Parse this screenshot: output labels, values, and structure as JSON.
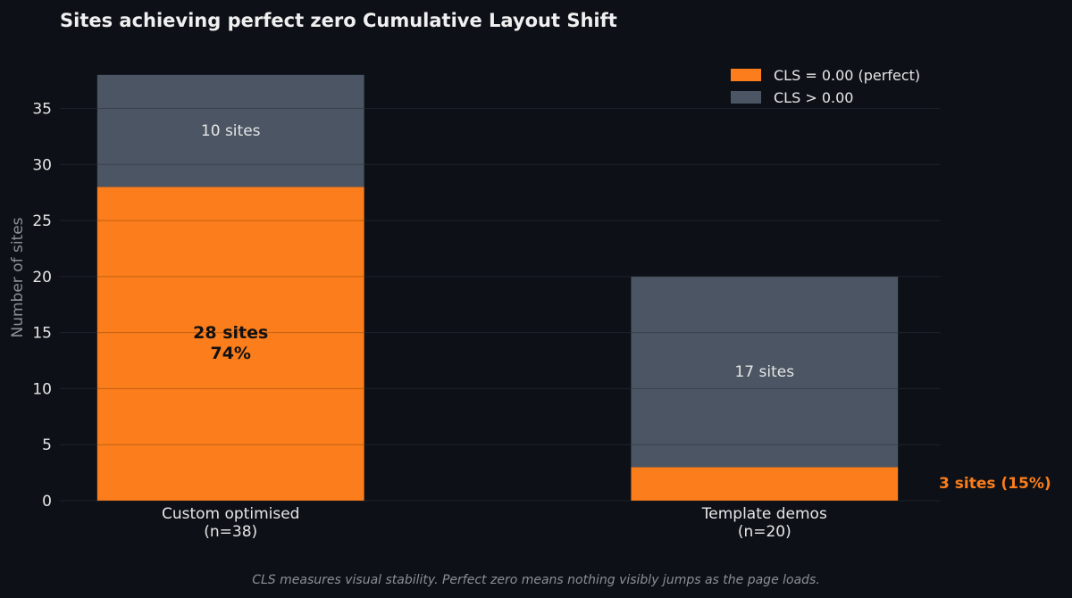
{
  "chart_data": {
    "type": "bar",
    "stacked": true,
    "title": "Sites achieving perfect zero Cumulative Layout Shift",
    "ylabel": "Number of sites",
    "xlabel": "",
    "ylim": [
      0,
      39.9
    ],
    "yticks": [
      0,
      5,
      10,
      15,
      20,
      25,
      30,
      35
    ],
    "grid": true,
    "legend_position": "top-right",
    "categories": [
      "Custom optimised\n(n=38)",
      "Template demos\n(n=20)"
    ],
    "series": [
      {
        "name": "CLS = 0.00 (perfect)",
        "color": "#fb7d1b",
        "values": [
          28,
          3
        ]
      },
      {
        "name": "CLS > 0.00",
        "color": "#4b5563",
        "values": [
          10,
          17
        ]
      }
    ],
    "annotations": {
      "custom_perfect": [
        "28 sites",
        "74%"
      ],
      "custom_other": "10 sites",
      "template_other": "17 sites",
      "template_perfect": "3 sites (15%)"
    },
    "footnote": "CLS measures visual stability. Perfect zero means nothing visibly jumps as the page loads."
  },
  "colors": {
    "background": "#0d1117",
    "grid": "#252b35",
    "text": "#e6e6e6",
    "muted": "#8b8f96"
  }
}
